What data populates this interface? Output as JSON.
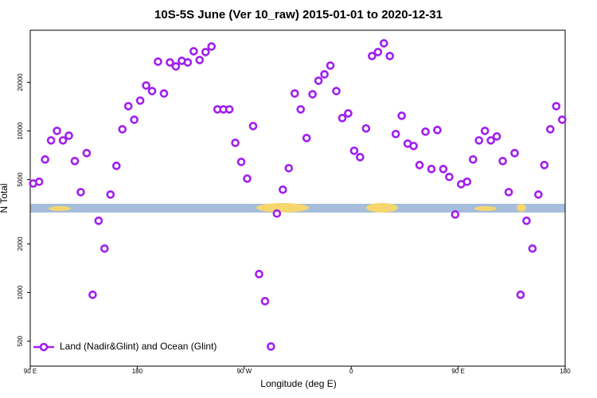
{
  "chart_data": {
    "type": "scatter",
    "title": "10S-5S June (Ver 10_raw)   2015-01-01 to 2020-12-31",
    "x_label": "Longitude (deg E)",
    "y_label": "N Total",
    "log_y": true,
    "legend": "bottom-left",
    "xlim": [
      90,
      540
    ],
    "xticks": [
      {
        "value": 90,
        "label": "90 E"
      },
      180,
      {
        "value": 270,
        "label": "90 W"
      },
      {
        "value": 360,
        "label": "0"
      },
      {
        "value": 450,
        "label": "90 E"
      },
      {
        "value": 540,
        "label": "180"
      }
    ],
    "ylim": [
      350,
      42000
    ],
    "yticks": [
      500,
      1000,
      2000,
      5000,
      10000,
      20000
    ],
    "x": [
      92.5,
      97.5,
      102.5,
      107.5,
      112.5,
      117.5,
      122.5,
      127.5,
      132.5,
      137.5,
      142.5,
      147.5,
      152.5,
      157.5,
      162.5,
      167.5,
      172.5,
      177.5,
      182.5,
      187.5,
      192.5,
      197.5,
      202.5,
      207.5,
      212.5,
      217.5,
      222.5,
      227.5,
      232.5,
      237.5,
      242.5,
      247.5,
      252.5,
      257.5,
      262.5,
      267.5,
      272.5,
      277.5,
      282.5,
      287.5,
      292.5,
      297.5,
      302.5,
      307.5,
      312.5,
      317.5,
      322.5,
      327.5,
      332.5,
      337.5,
      342.5,
      347.5,
      352.5,
      357.5,
      362.5,
      367.5,
      372.5,
      377.5,
      382.5,
      387.5,
      392.5,
      397.5,
      402.5,
      407.5,
      412.5,
      417.5,
      422.5,
      427.5,
      432.5,
      437.5,
      442.5,
      447.5,
      452.5,
      457.5,
      462.5,
      467.5,
      472.5,
      477.5,
      482.5,
      487.5,
      492.5,
      497.5,
      502.5,
      507.5,
      512.5,
      517.5,
      522.5,
      527.5,
      532.5,
      537.5
    ],
    "series": [
      {
        "name": "Land (Nadir&Glint) and Ocean (Glint)",
        "color": "#a020f0",
        "values": [
          4730,
          4850,
          6660,
          8740,
          10010,
          8740,
          9350,
          6510,
          4180,
          7290,
          968,
          2780,
          1870,
          4040,
          6080,
          10240,
          14230,
          11730,
          15410,
          19110,
          17650,
          26850,
          17060,
          26550,
          25090,
          27170,
          26550,
          31130,
          27480,
          30780,
          33320,
          13600,
          13600,
          13600,
          8440,
          6430,
          5070,
          10720,
          1300,
          884,
          463,
          3080,
          4330,
          5880,
          17060,
          13600,
          9040,
          16870,
          20460,
          22400,
          25380,
          17650,
          12010,
          12850,
          7540,
          6880,
          10360,
          29090,
          30780,
          34870,
          29090,
          9570,
          12420,
          8350,
          8070,
          6150,
          9900,
          5810,
          10130,
          5810,
          5190,
          3040,
          4680,
          4850,
          6660,
          8740,
          10010,
          8740,
          9250,
          6510,
          4180,
          7290,
          968,
          2780,
          1870,
          4040,
          6150,
          10240,
          14230,
          11730
        ]
      }
    ]
  }
}
